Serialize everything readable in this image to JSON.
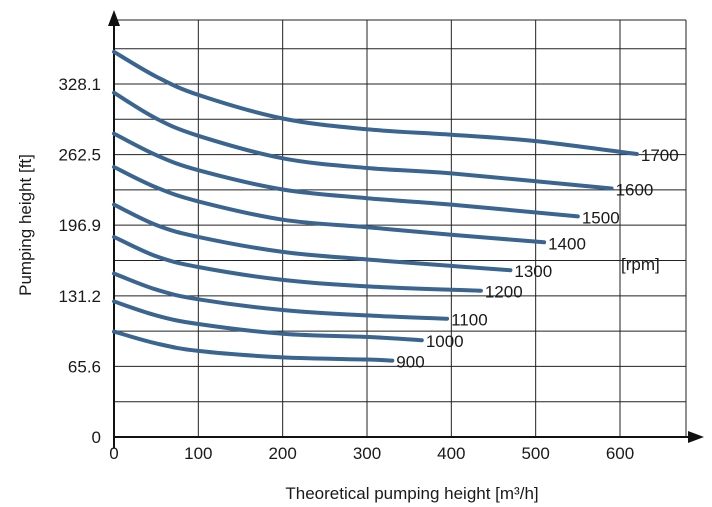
{
  "chart_data": {
    "type": "line",
    "xlabel": "Theoretical pumping height [m³/h]",
    "ylabel": "Pumping height [ft]",
    "unit_label": "[rpm]",
    "xlim": [
      0,
      680
    ],
    "ylim": [
      0,
      410
    ],
    "x_ticks": [
      0,
      100,
      200,
      300,
      400,
      500,
      600
    ],
    "y_ticks": [
      0,
      65.6,
      131.2,
      196.9,
      262.5,
      328.1
    ],
    "y_tick_labels": [
      "0",
      "65.6",
      "131.2",
      "196.9",
      "262.5",
      "328.1"
    ],
    "x_gridlines": [
      0,
      100,
      200,
      300,
      400,
      500,
      600
    ],
    "y_gridlines": [
      32.8,
      65.6,
      98.4,
      131.2,
      164.1,
      196.9,
      229.7,
      262.5,
      295.3,
      328.1,
      360.9
    ],
    "grid": true,
    "line_color": "#3a6591",
    "series": [
      {
        "name": "900",
        "x": [
          0,
          50,
          100,
          200,
          300,
          330
        ],
        "y": [
          98,
          87,
          80,
          74,
          72,
          71
        ]
      },
      {
        "name": "1000",
        "x": [
          0,
          50,
          100,
          200,
          300,
          365
        ],
        "y": [
          126,
          113,
          105,
          96,
          93,
          90
        ]
      },
      {
        "name": "1100",
        "x": [
          0,
          50,
          100,
          200,
          300,
          395
        ],
        "y": [
          152,
          137,
          128,
          118,
          113,
          110
        ]
      },
      {
        "name": "1200",
        "x": [
          0,
          50,
          100,
          200,
          300,
          435
        ],
        "y": [
          186,
          168,
          158,
          146,
          140,
          136
        ]
      },
      {
        "name": "1300",
        "x": [
          0,
          50,
          100,
          200,
          300,
          400,
          470
        ],
        "y": [
          216,
          197,
          186,
          172,
          165,
          159,
          155
        ]
      },
      {
        "name": "1400",
        "x": [
          0,
          50,
          100,
          200,
          300,
          400,
          510
        ],
        "y": [
          251,
          232,
          219,
          202,
          195,
          188,
          181
        ]
      },
      {
        "name": "1500",
        "x": [
          0,
          50,
          100,
          200,
          300,
          400,
          550
        ],
        "y": [
          282,
          262,
          248,
          230,
          222,
          216,
          205
        ]
      },
      {
        "name": "1600",
        "x": [
          0,
          50,
          100,
          200,
          300,
          400,
          590
        ],
        "y": [
          320,
          296,
          280,
          259,
          250,
          245,
          231
        ]
      },
      {
        "name": "1700",
        "x": [
          0,
          50,
          100,
          200,
          300,
          400,
          500,
          620
        ],
        "y": [
          358,
          335,
          318,
          296,
          286,
          281,
          275,
          263
        ]
      }
    ]
  }
}
